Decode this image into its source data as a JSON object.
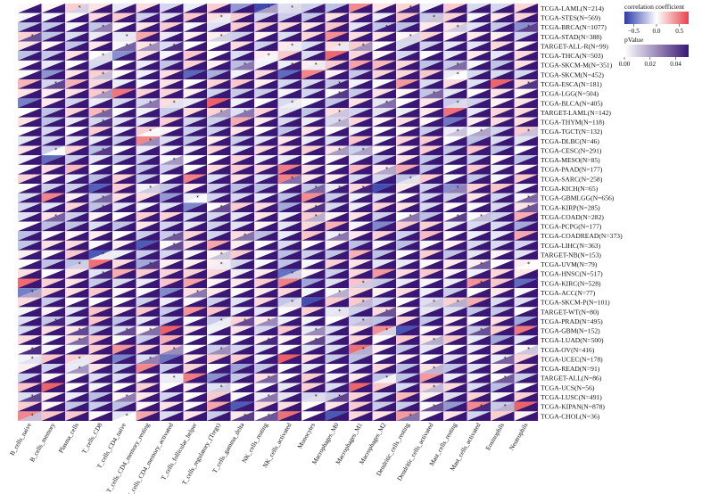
{
  "chart_data": {
    "type": "heatmap",
    "subtype": "split-triangle correlation heatmap",
    "rows": [
      "TCGA-LAML(N=214)",
      "TCGA-STES(N=569)",
      "TCGA-BRCA(N=1077)",
      "TCGA-STAD(N=388)",
      "TARGET-ALL-R(N=99)",
      "TCGA-THCA(N=503)",
      "TCGA-SKCM-M(N=351)",
      "TCGA-SKCM(N=452)",
      "TCGA-ESCA(N=181)",
      "TCGA-LGG(N=504)",
      "TCGA-BLCA(N=405)",
      "TARGET-LAML(N=142)",
      "TCGA-THYM(N=118)",
      "TCGA-TGCT(N=132)",
      "TCGA-DLBC(N=46)",
      "TCGA-CESC(N=291)",
      "TCGA-MESO(N=85)",
      "TCGA-PAAD(N=177)",
      "TCGA-SARC(N=258)",
      "TCGA-KICH(N=65)",
      "TCGA-GBMLGG(N=656)",
      "TCGA-KIRP(N=285)",
      "TCGA-COAD(N=282)",
      "TCGA-PCPG(N=177)",
      "TCGA-COADREAD(N=373)",
      "TCGA-LIHC(N=363)",
      "TARGET-NB(N=153)",
      "TCGA-UVM(N=79)",
      "TCGA-HNSC(N=517)",
      "TCGA-KIRC(N=528)",
      "TCGA-ACC(N=77)",
      "TCGA-SKCM-P(N=101)",
      "TARGET-WT(N=80)",
      "TCGA-PRAD(N=495)",
      "TCGA-GBM(N=152)",
      "TCGA-LUAD(N=500)",
      "TCGA-OV(N=416)",
      "TCGA-UCEC(N=178)",
      "TCGA-READ(N=91)",
      "TARGET-ALL(N=86)",
      "TCGA-UCS(N=56)",
      "TCGA-LUSC(N=491)",
      "TCGA-KIPAN(N=878)",
      "TCGA-CHOL(N=36)"
    ],
    "columns": [
      "B_cells_naive",
      "B_cells_memory",
      "Plasma_cells",
      "T_cells_CD8",
      "T_cells_CD4_naive",
      "T_cells_CD4_memory_resting",
      "T_cells_CD4_memory_activated",
      "T_cells_follicular_helper",
      "T_cells_regulatory_(Tregs)",
      "T_cells_gamma_delta",
      "NK_cells_resting",
      "NK_cells_activated",
      "Monocytes",
      "Macrophages_M0",
      "Macrophages_M1",
      "Macrophages_M2",
      "Dendritic_cells_resting",
      "Dendritic_cells_activated",
      "Mast_cells_resting",
      "Mast_cells_activated",
      "Eosinophils",
      "Neutrophils"
    ],
    "upper_triangle": "correlation coefficient",
    "lower_triangle": "pValue",
    "significance_marker": "*",
    "legend": {
      "correlation": {
        "title": "correlation coefficient",
        "range": [
          -0.7,
          0.7
        ],
        "ticks": [
          -0.5,
          0.0,
          0.5
        ],
        "tick_labels": [
          "−0.5",
          "0.0",
          "0.5"
        ],
        "colors": [
          "#2b3aa6",
          "#ffffff",
          "#e8434b"
        ]
      },
      "pvalue": {
        "title": "pValue",
        "range": [
          0.0,
          0.05
        ],
        "ticks": [
          0.0,
          0.02,
          0.04
        ],
        "tick_labels": [
          "0.00",
          "0.02",
          "0.04"
        ],
        "colors": [
          "#ffffff",
          "#3a1775"
        ]
      }
    }
  }
}
